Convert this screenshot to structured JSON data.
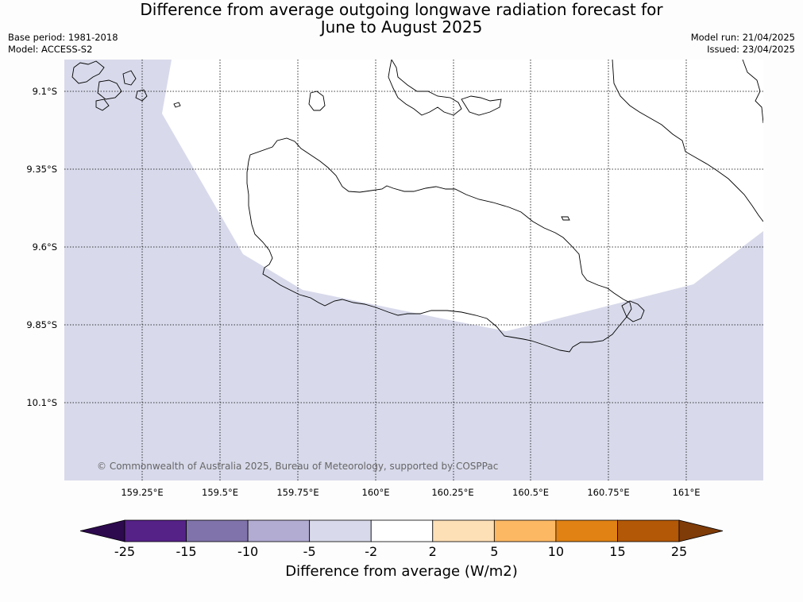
{
  "title_line1": "Difference from average outgoing longwave radiation forecast for",
  "title_line2": "June to August 2025",
  "base_period": "Base period: 1981-2018",
  "model": "Model: ACCESS-S2",
  "model_run": "Model run: 21/04/2025",
  "issued": "Issued: 23/04/2025",
  "copyright": "© Commonwealth of Australia 2025, Bureau of Meteorology, supported by COSPPac",
  "latitudes": [
    "9.1°S",
    "9.35°S",
    "9.6°S",
    "9.85°S",
    "10.1°S"
  ],
  "longitudes": [
    "159.25°E",
    "159.5°E",
    "159.75°E",
    "160°E",
    "160.25°E",
    "160.5°E",
    "160.75°E",
    "161°E"
  ],
  "colorbar": {
    "title": "Difference from average (W/m2)",
    "ticks": [
      "-25",
      "-15",
      "-10",
      "-5",
      "-2",
      "2",
      "5",
      "10",
      "15",
      "25"
    ],
    "colors": [
      "#2d0a4e",
      "#552288",
      "#8073ac",
      "#b2abd2",
      "#d8daeb",
      "#ffffff",
      "#fee0b6",
      "#fdb863",
      "#e08214",
      "#b35806",
      "#7f3b08"
    ]
  },
  "map_colors": {
    "negative_fill": "#d8daeb",
    "neutral_fill": "#ffffff"
  }
}
